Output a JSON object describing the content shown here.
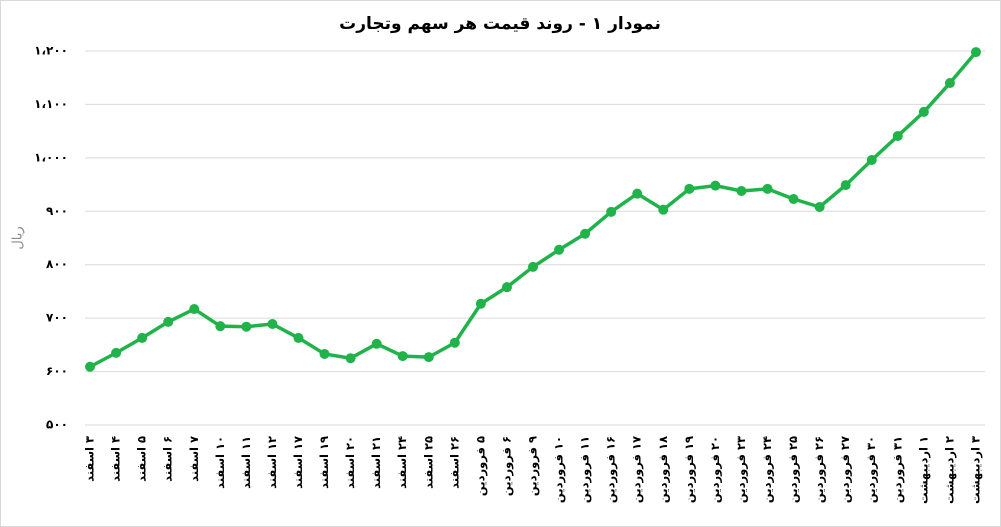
{
  "chart_data": {
    "type": "line",
    "title": "نمودار ۱ - روند قیمت هر سهم وتجارت",
    "y_label": "ریال",
    "categories": [
      "۳ اسفند",
      "۴ اسفند",
      "۵ اسفند",
      "۶ اسفند",
      "۷ اسفند",
      "۱۰ اسفند",
      "۱۱ اسفند",
      "۱۲ اسفند",
      "۱۷ اسفند",
      "۱۹ اسفند",
      "۲۰ اسفند",
      "۲۱ اسفند",
      "۲۴ اسفند",
      "۲۵ اسفند",
      "۲۶ اسفند",
      "۵ فروردین",
      "۶ فروردین",
      "۹ فروردین",
      "۱۰ فروردین",
      "۱۱ فروردین",
      "۱۶ فروردین",
      "۱۷ فروردین",
      "۱۸ فروردین",
      "۱۹ فروردین",
      "۲۰ فروردین",
      "۲۳ فروردین",
      "۲۴ فروردین",
      "۲۵ فروردین",
      "۲۶ فروردین",
      "۲۷ فروردین",
      "۳۰ فروردین",
      "۳۱ فروردین",
      "۱ اردیبهشت",
      "۲ اردیبهشت",
      "۳ اردیبهشت"
    ],
    "values": [
      609,
      635,
      663,
      693,
      717,
      685,
      684,
      689,
      663,
      633,
      625,
      652,
      629,
      627,
      654,
      727,
      758,
      796,
      828,
      858,
      899,
      933,
      903,
      942,
      948,
      938,
      942,
      923,
      908,
      949,
      996,
      1041,
      1086,
      1140,
      1198
    ],
    "color": "#1fb34a",
    "ylim": [
      500,
      1200
    ],
    "yticks": [
      {
        "value": 500,
        "label": "۵۰۰"
      },
      {
        "value": 600,
        "label": "۶۰۰"
      },
      {
        "value": 700,
        "label": "۷۰۰"
      },
      {
        "value": 800,
        "label": "۸۰۰"
      },
      {
        "value": 900,
        "label": "۹۰۰"
      },
      {
        "value": 1000,
        "label": "۱،۰۰۰"
      },
      {
        "value": 1100,
        "label": "۱،۱۰۰"
      },
      {
        "value": 1200,
        "label": "۱،۲۰۰"
      }
    ],
    "grid": true
  }
}
